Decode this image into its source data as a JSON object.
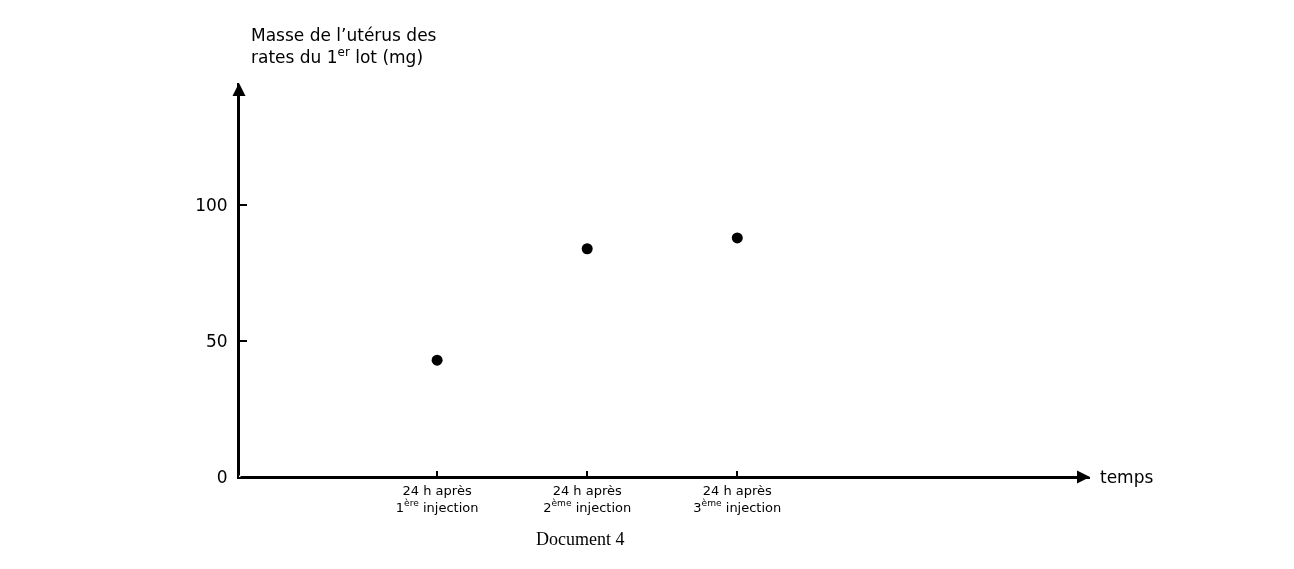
{
  "chart_data": {
    "type": "scatter",
    "ylabel": "Masse de l’utérus des\nrates du 1$^{er}$ lot (mg)",
    "categories": [
      "24 h après\n1$^{ère}$ injection",
      "24 h après\n2$^{ème}$ injection",
      "24 h après\n3$^{ème}$ injection"
    ],
    "values": [
      43,
      84,
      88
    ],
    "color": "#000000",
    "marker": "circle",
    "ylim": [
      0,
      145
    ],
    "yticks": [
      0,
      50,
      100
    ],
    "grid": false,
    "legend": false,
    "annotations": [
      "temps",
      "Document 4"
    ]
  }
}
